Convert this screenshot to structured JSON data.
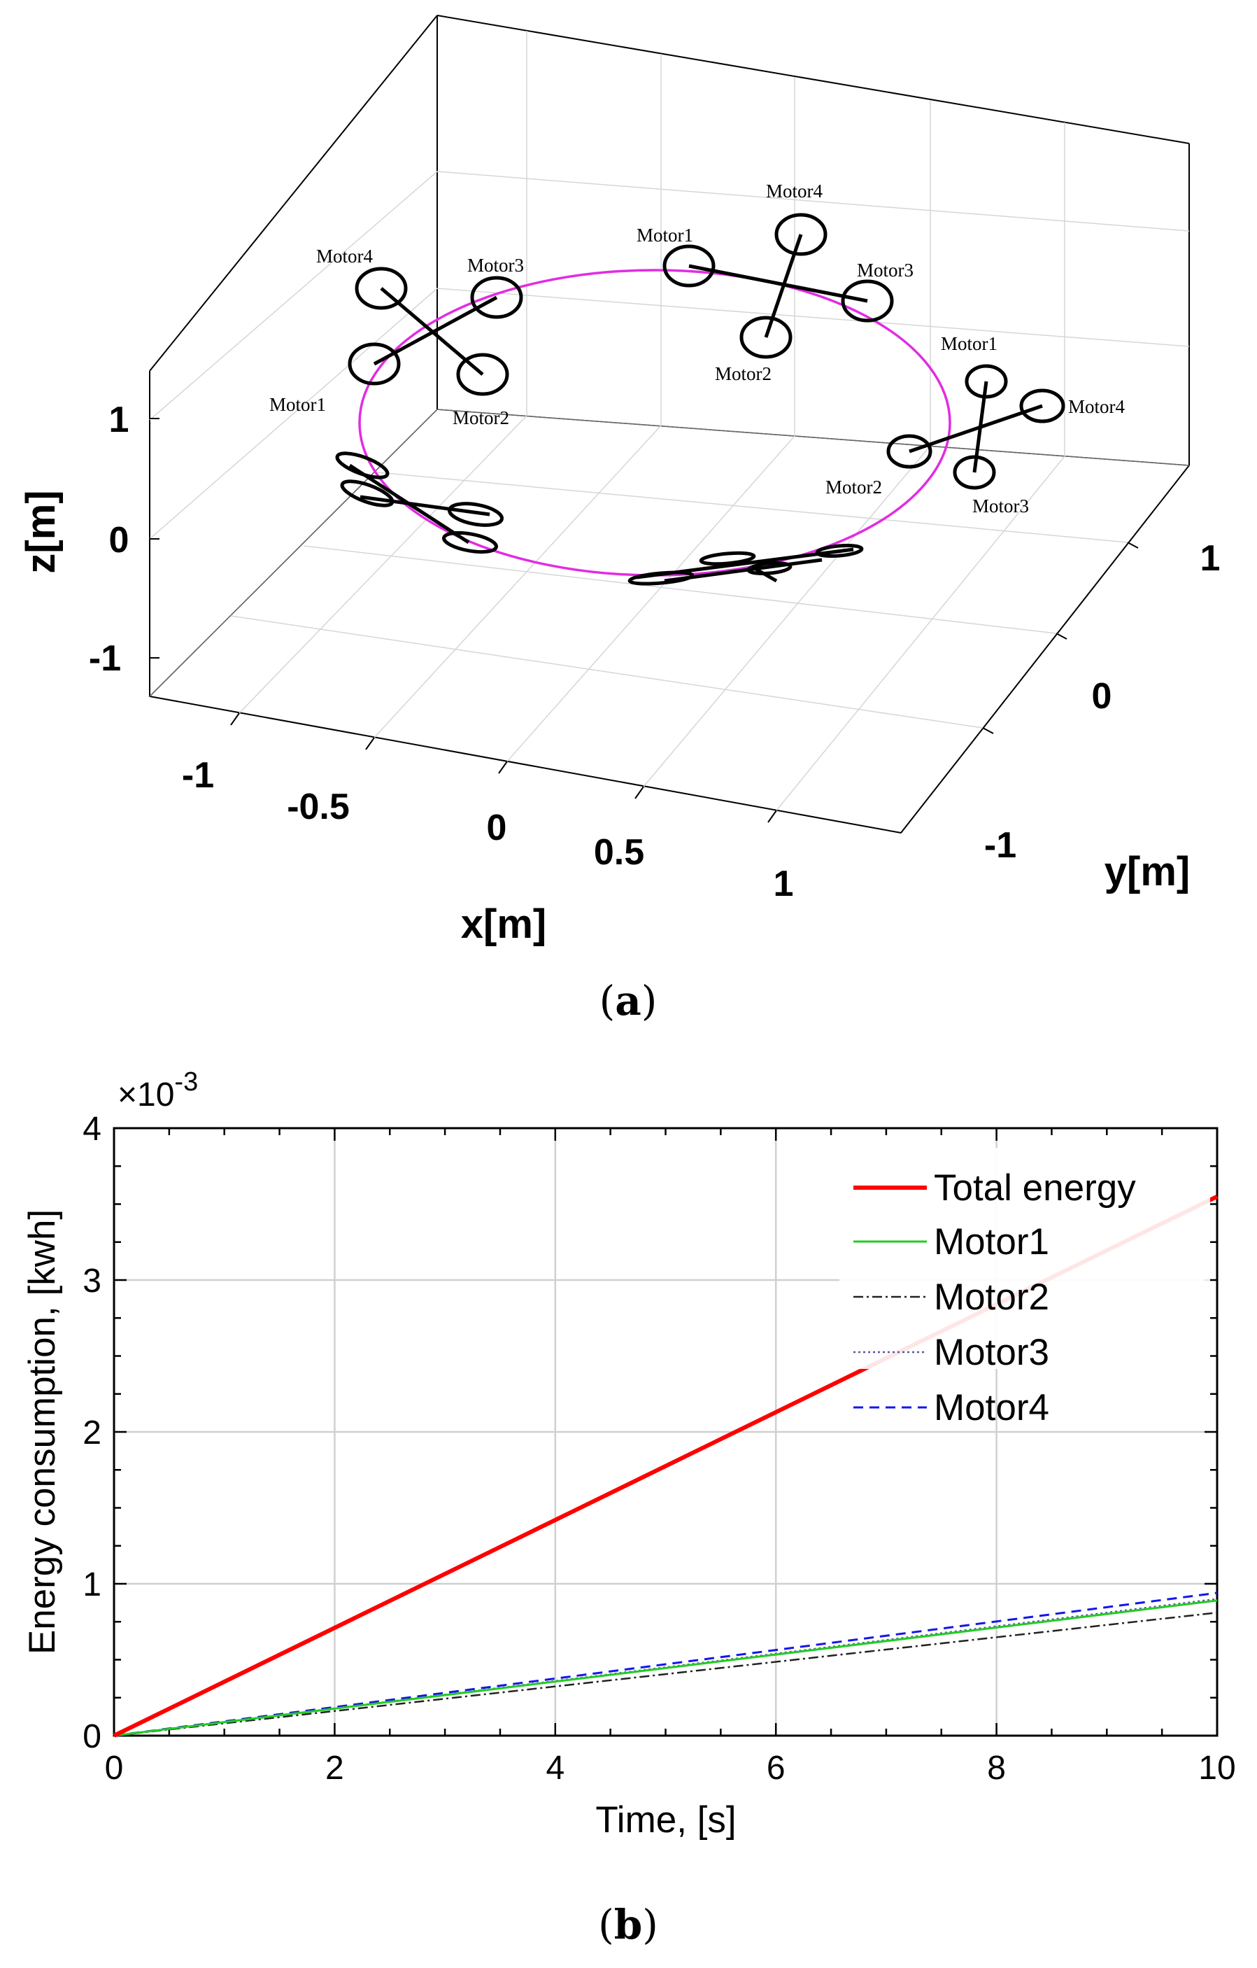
{
  "chart_data": [
    {
      "type": "line",
      "subtype": "3d-trajectory",
      "caption_letter": "a",
      "xlabel": "x[m]",
      "ylabel": "y[m]",
      "zlabel": "z[m]",
      "x_ticks": [
        "-1",
        "-0.5",
        "0",
        "0.5",
        "1"
      ],
      "y_ticks": [
        "-1",
        "0",
        "1"
      ],
      "z_ticks": [
        "-1",
        "0",
        "1"
      ],
      "xlim": [
        -1.2,
        1.2
      ],
      "ylim": [
        -1.5,
        1.5
      ],
      "zlim": [
        -1.3,
        1.3
      ],
      "trajectory": {
        "shape": "circle",
        "radius": 1.0,
        "z": 0,
        "color": "#e22ce2"
      },
      "drones": [
        {
          "name": "drone-left-back",
          "motor_labels": [
            "Motor1",
            "Motor2",
            "Motor3",
            "Motor4"
          ]
        },
        {
          "name": "drone-top",
          "motor_labels": [
            "Motor1",
            "Motor2",
            "Motor3",
            "Motor4"
          ]
        },
        {
          "name": "drone-right",
          "motor_labels": [
            "Motor1",
            "Motor2",
            "Motor3",
            "Motor4"
          ]
        }
      ]
    },
    {
      "type": "line",
      "caption_letter": "b",
      "xlabel": "Time, [s]",
      "ylabel": "Energy consumption, [kwh]",
      "multiplier_base": "×10",
      "multiplier_exp": "-3",
      "xlim": [
        0,
        10
      ],
      "ylim": [
        0,
        4
      ],
      "x_ticks": [
        "0",
        "2",
        "4",
        "6",
        "8",
        "10"
      ],
      "y_ticks": [
        "0",
        "1",
        "2",
        "3",
        "4"
      ],
      "grid": true,
      "legend_position": "top-right",
      "x": [
        0,
        10
      ],
      "series": [
        {
          "name": "Total energy",
          "values": [
            0,
            3.55
          ],
          "color": "#ff0000",
          "style": "solid-thick"
        },
        {
          "name": "Motor1",
          "values": [
            0,
            0.89
          ],
          "color": "#22cc22",
          "style": "solid"
        },
        {
          "name": "Motor2",
          "values": [
            0,
            0.81
          ],
          "color": "#222222",
          "style": "dash-dot"
        },
        {
          "name": "Motor3",
          "values": [
            0,
            0.9
          ],
          "color": "#5a5aa0",
          "style": "dotted"
        },
        {
          "name": "Motor4",
          "values": [
            0,
            0.94
          ],
          "color": "#1515ee",
          "style": "dashed"
        }
      ]
    }
  ]
}
